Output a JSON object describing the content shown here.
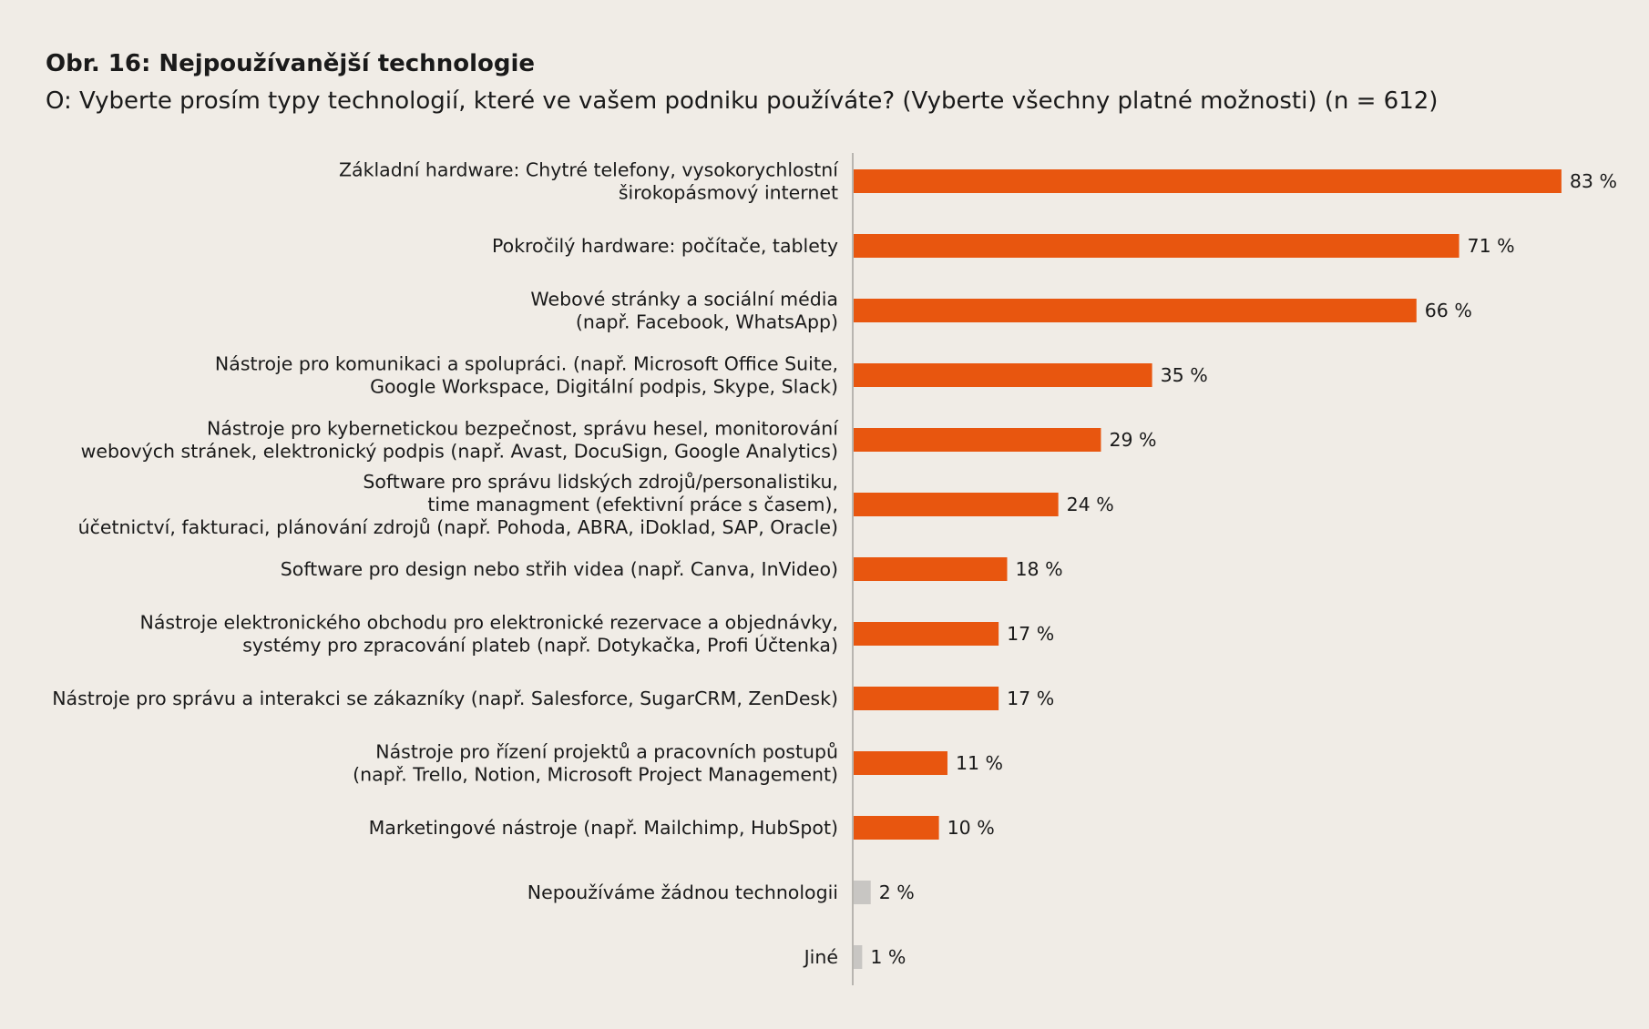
{
  "chart_data": {
    "type": "bar",
    "orientation": "horizontal",
    "title": "Obr. 16: Nejpoužívanější technologie",
    "subtitle": "O: Vyberte prosím typy technologií, které ve vašem podniku používáte? (Vyberte všechny platné možnosti) (n = 612)",
    "xlim": [
      0,
      100
    ],
    "grid": false,
    "legend": "none",
    "categories": [
      [
        "Základní hardware: Chytré telefony, vysokorychlostní",
        "širokopásmový internet"
      ],
      [
        "Pokročilý hardware: počítače, tablety"
      ],
      [
        "Webové stránky a sociální média",
        "(např. Facebook, WhatsApp)"
      ],
      [
        "Nástroje pro komunikaci a spolupráci. (např. Microsoft Office Suite,",
        "Google Workspace, Digitální podpis, Skype, Slack)"
      ],
      [
        "Nástroje pro kybernetickou bezpečnost, správu hesel, monitorování",
        "webových stránek, elektronický podpis (např. Avast, DocuSign, Google Analytics)"
      ],
      [
        "Software pro správu lidských zdrojů/personalistiku,",
        "time managment (efektivní práce s časem),",
        "účetnictví, fakturaci, plánování zdrojů (např. Pohoda, ABRA, iDoklad, SAP, Oracle)"
      ],
      [
        "Software pro design nebo střih videa (např. Canva, InVideo)"
      ],
      [
        "Nástroje elektronického obchodu pro elektronické rezervace a objednávky,",
        "systémy pro zpracování plateb (např. Dotykačka, Profi Účtenka)"
      ],
      [
        "Nástroje pro správu a interakci se zákazníky (např. Salesforce, SugarCRM, ZenDesk)"
      ],
      [
        "Nástroje pro řízení projektů a pracovních postupů",
        "(např. Trello, Notion, Microsoft Project Management)"
      ],
      [
        "Marketingové nástroje (např. Mailchimp, HubSpot)"
      ],
      [
        "Nepoužíváme žádnou technologii"
      ],
      [
        "Jiné"
      ]
    ],
    "values": [
      83,
      71,
      66,
      35,
      29,
      24,
      18,
      17,
      17,
      11,
      10,
      2,
      1
    ],
    "value_labels": [
      "83 %",
      "71 %",
      "66 %",
      "35 %",
      "29 %",
      "24 %",
      "18 %",
      "17 %",
      "17 %",
      "11 %",
      "10 %",
      "2 %",
      "1 %"
    ],
    "bar_colors": [
      "#e8560f",
      "#e8560f",
      "#e8560f",
      "#e8560f",
      "#e8560f",
      "#e8560f",
      "#e8560f",
      "#e8560f",
      "#e8560f",
      "#e8560f",
      "#e8560f",
      "#c8c6c3",
      "#c8c6c3"
    ]
  },
  "colors": {
    "background": "#f0ece6",
    "axis": "#b8b5b0",
    "text": "#1a1a1a"
  }
}
